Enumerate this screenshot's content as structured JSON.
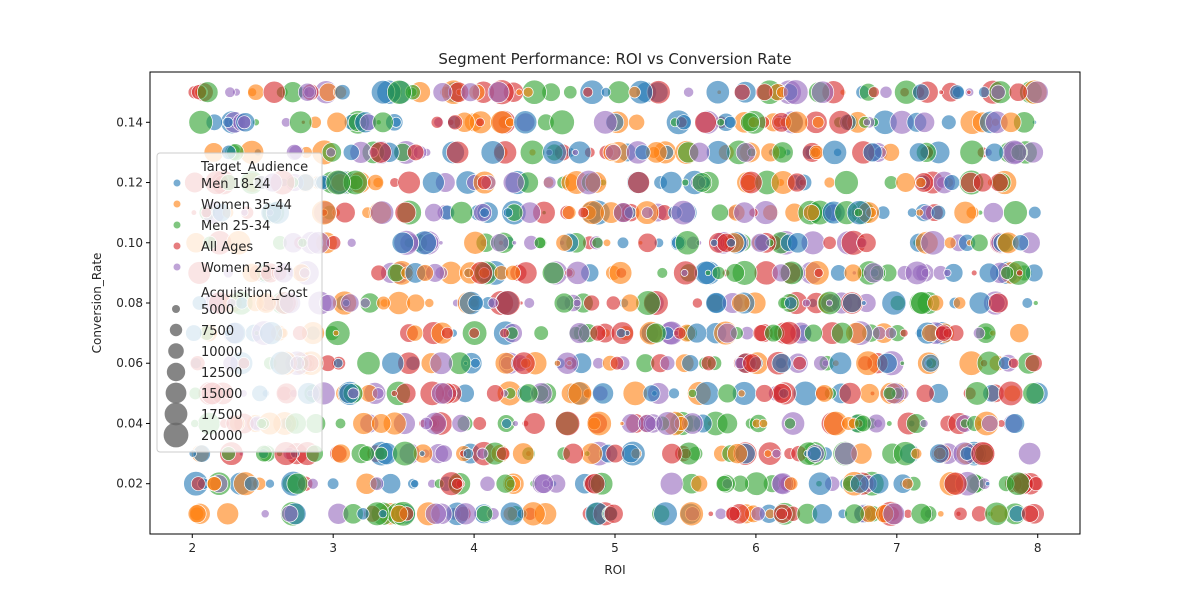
{
  "chart_data": {
    "type": "scatter",
    "title": "Segment Performance: ROI vs Conversion Rate",
    "xlabel": "ROI",
    "ylabel": "Conversion_Rate",
    "xlim": [
      1.7,
      8.3
    ],
    "ylim": [
      0.0033,
      0.1567
    ],
    "xticks": [
      2,
      3,
      4,
      5,
      6,
      7,
      8
    ],
    "yticks": [
      0.02,
      0.04,
      0.06,
      0.08,
      0.1,
      0.12,
      0.14
    ],
    "ytick_labels": [
      "0.02",
      "0.04",
      "0.06",
      "0.08",
      "0.10",
      "0.12",
      "0.14"
    ],
    "conversion_levels": [
      0.01,
      0.02,
      0.03,
      0.04,
      0.05,
      0.06,
      0.07,
      0.08,
      0.09,
      0.1,
      0.11,
      0.12,
      0.13,
      0.14,
      0.15
    ],
    "roi_range": [
      2.0,
      8.0
    ],
    "point_opacity": 0.6,
    "grid": false,
    "legend": {
      "placement": "center-left",
      "hue_title": "Target_Audience",
      "size_title": "Acquisition_Cost",
      "sizes": [
        "5000",
        "7500",
        "10000",
        "12500",
        "15000",
        "17500",
        "20000"
      ],
      "size_values": [
        5000,
        7500,
        10000,
        12500,
        15000,
        17500,
        20000
      ]
    },
    "series": [
      {
        "name": "Men 18-24",
        "color": "#1f77b4"
      },
      {
        "name": "Women 35-44",
        "color": "#ff7f0e"
      },
      {
        "name": "Men 25-34",
        "color": "#2ca02c"
      },
      {
        "name": "All Ages",
        "color": "#d62728"
      },
      {
        "name": "Women 25-34",
        "color": "#9467bd"
      }
    ],
    "size_color": "#666666",
    "acquisition_cost_range": [
      5000,
      20000
    ]
  }
}
